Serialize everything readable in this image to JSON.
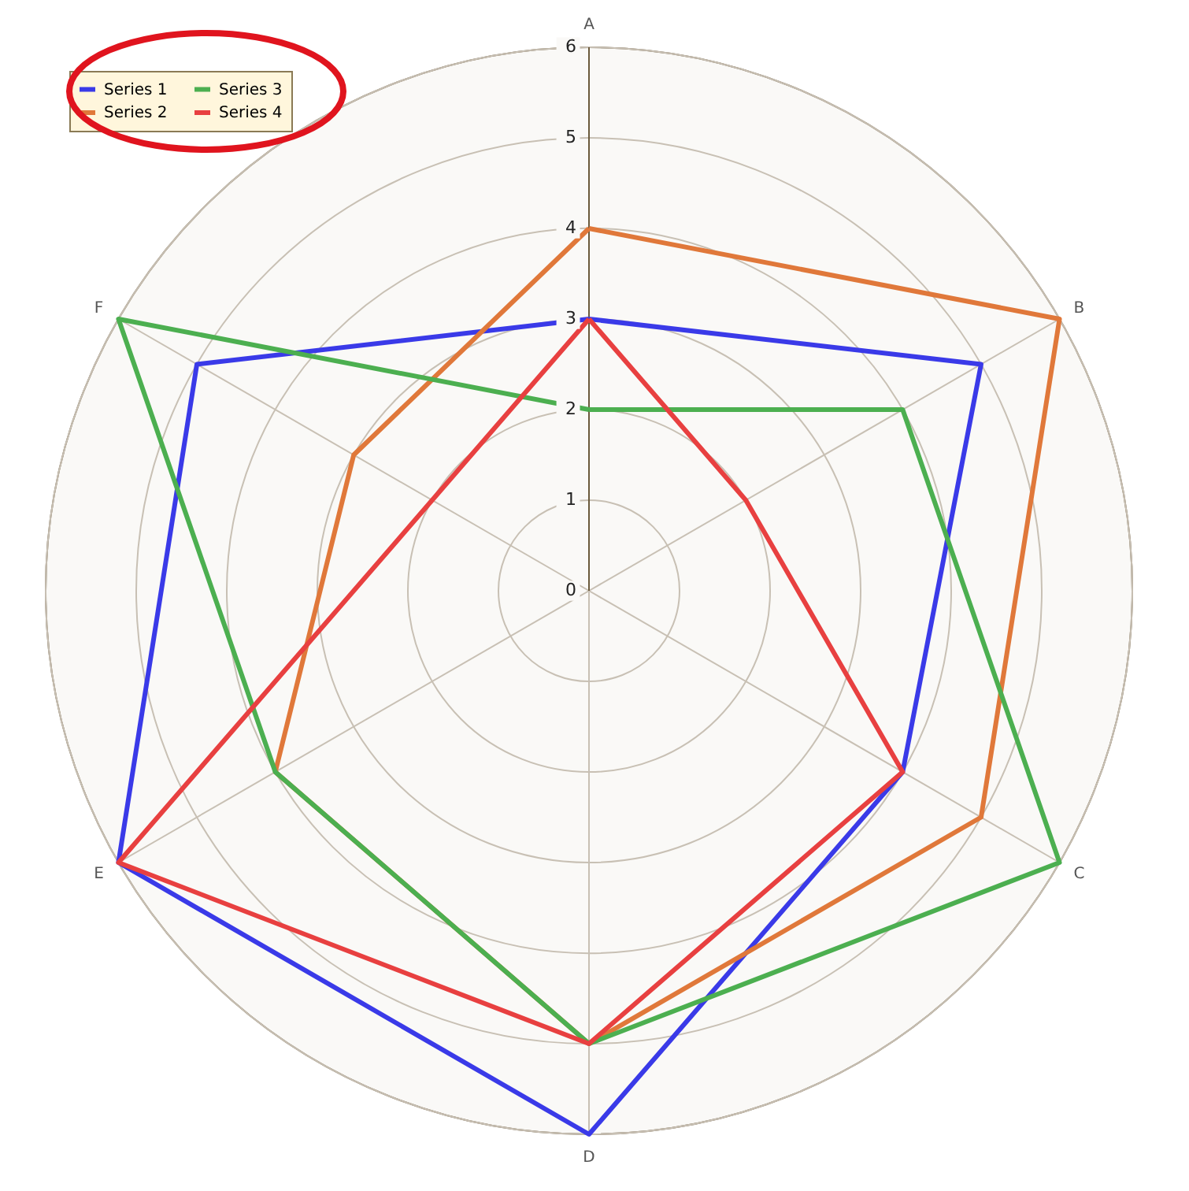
{
  "chart_data": {
    "type": "radar",
    "categories": [
      "A",
      "B",
      "C",
      "D",
      "E",
      "F"
    ],
    "ylim": [
      0,
      6
    ],
    "yticks": [
      0,
      1,
      2,
      3,
      4,
      5,
      6
    ],
    "grid": true,
    "legend": "top left",
    "series": [
      {
        "name": "Series 1",
        "color": "#3a3ae8",
        "values": [
          3,
          5,
          4,
          6,
          6,
          5
        ]
      },
      {
        "name": "Series 2",
        "color": "#e0783a",
        "values": [
          4,
          6,
          5,
          5,
          4,
          3
        ]
      },
      {
        "name": "Series 3",
        "color": "#4caf50",
        "values": [
          2,
          4,
          6,
          5,
          4,
          6
        ]
      },
      {
        "name": "Series 4",
        "color": "#e84040",
        "values": [
          3,
          2,
          4,
          5,
          6,
          2
        ]
      }
    ]
  }
}
